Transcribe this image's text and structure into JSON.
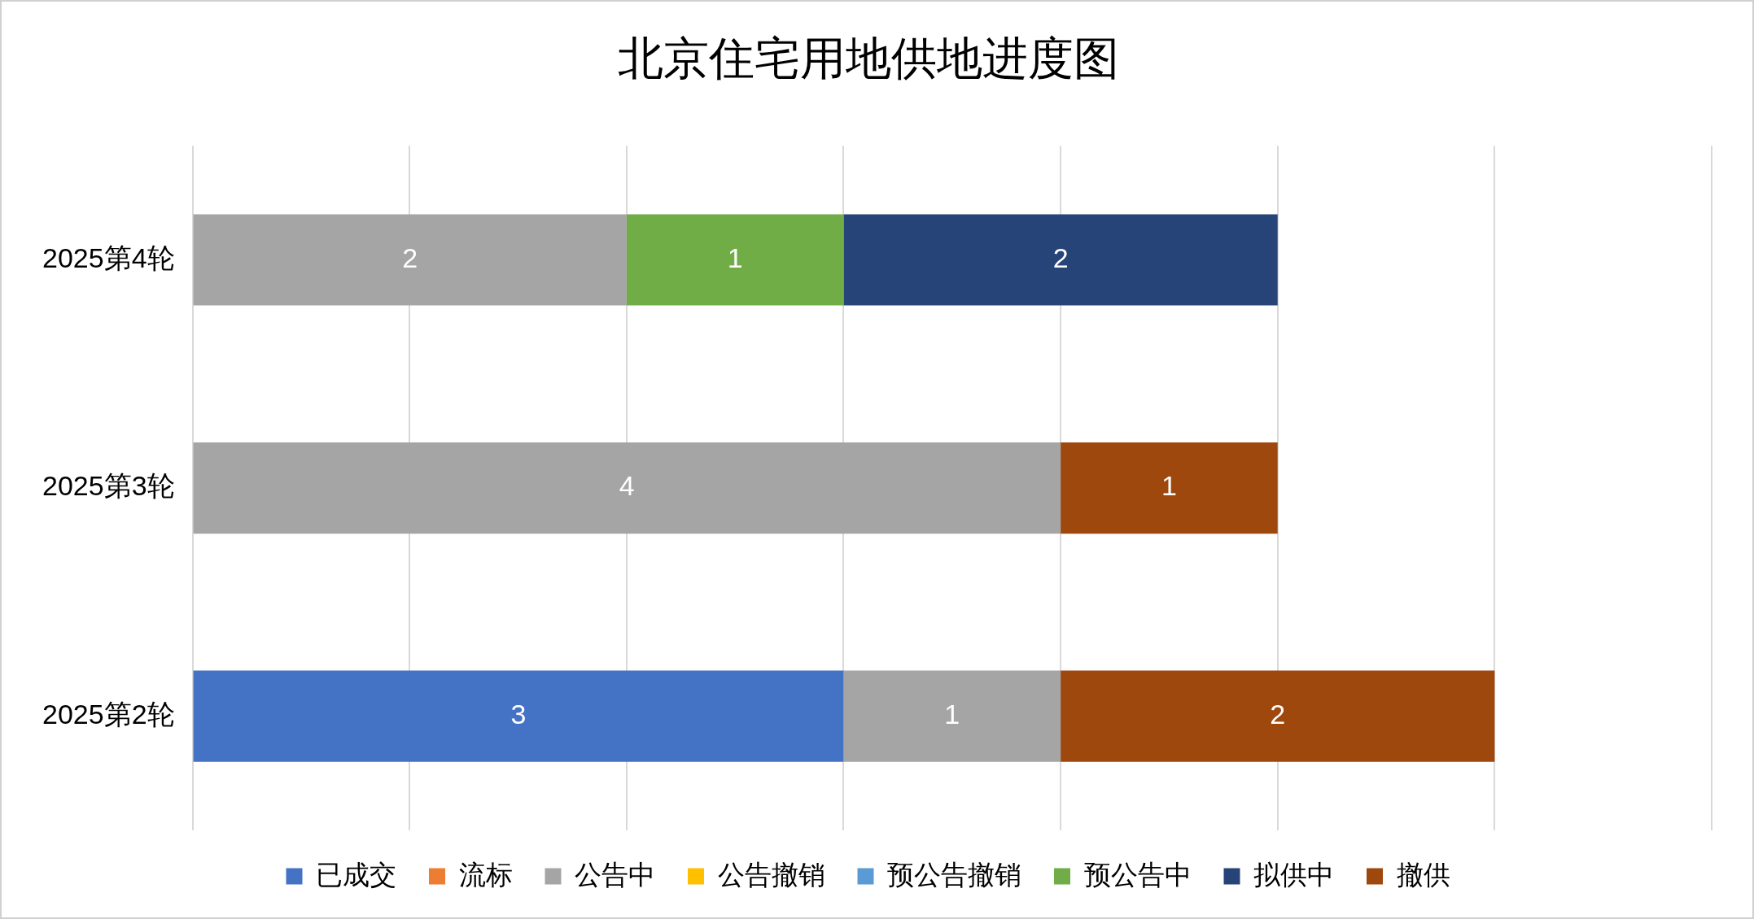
{
  "chart_data": {
    "type": "bar",
    "orientation": "horizontal",
    "stacked": true,
    "title": "北京住宅用地供地进度图",
    "categories": [
      "2025第4轮",
      "2025第3轮",
      "2025第2轮"
    ],
    "series": [
      {
        "name": "已成交",
        "color": "#4472c4",
        "values": [
          null,
          null,
          3
        ]
      },
      {
        "name": "流标",
        "color": "#ed7d31",
        "values": [
          null,
          null,
          null
        ]
      },
      {
        "name": "公告中",
        "color": "#a5a5a5",
        "values": [
          2,
          4,
          1
        ]
      },
      {
        "name": "公告撤销",
        "color": "#ffc000",
        "values": [
          null,
          null,
          null
        ]
      },
      {
        "name": "预公告撤销",
        "color": "#5b9bd5",
        "values": [
          null,
          null,
          null
        ]
      },
      {
        "name": "预公告中",
        "color": "#70ad47",
        "values": [
          1,
          null,
          null
        ]
      },
      {
        "name": "拟供中",
        "color": "#264478",
        "values": [
          2,
          null,
          null
        ]
      },
      {
        "name": "撤供",
        "color": "#9e480e",
        "values": [
          null,
          1,
          2
        ]
      }
    ],
    "xlim": [
      0,
      7
    ],
    "xticks": [
      {
        "value": 0,
        "label": null
      },
      {
        "value": 1,
        "label": null
      },
      {
        "value": 2,
        "label": null
      },
      {
        "value": 3,
        "label": null
      },
      {
        "value": 4,
        "label": null
      },
      {
        "value": 5,
        "label": null
      },
      {
        "value": 6,
        "label": null
      },
      {
        "value": 7,
        "label": null
      }
    ],
    "tick_labels": "y",
    "grid": "x",
    "legend": "bottom",
    "data_labels": true
  }
}
